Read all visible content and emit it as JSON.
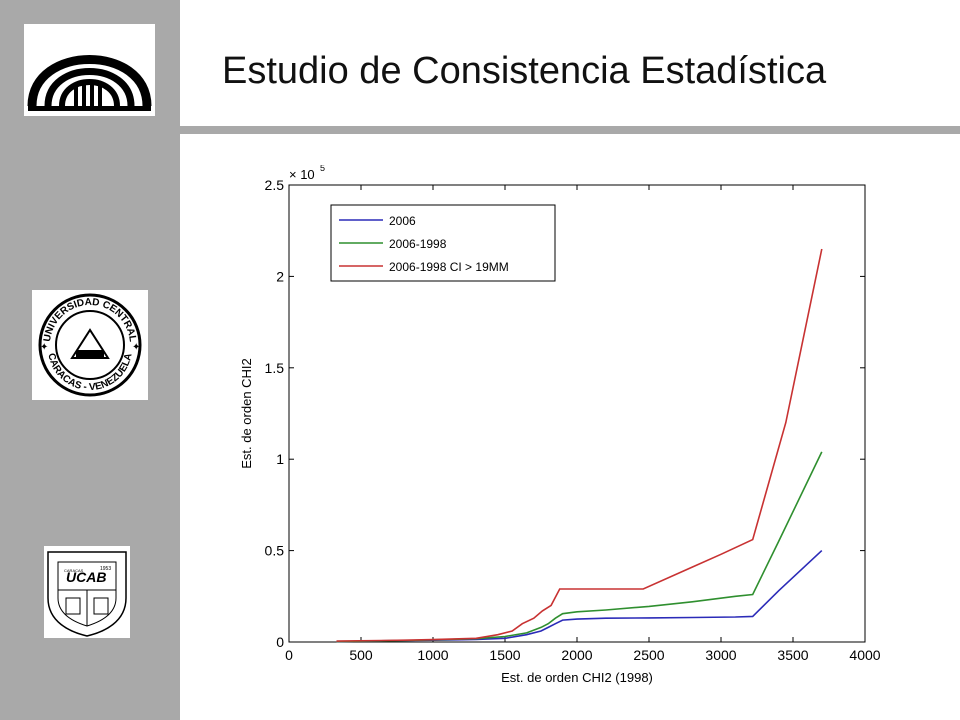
{
  "slide": {
    "title": "Estudio de Consistencia Estadística"
  },
  "logos": [
    {
      "name": "ucv-building-logo"
    },
    {
      "name": "ucv-seal",
      "top_text": "UNIVERSIDAD CENTRAL",
      "bottom_text": "CARACAS - VENEZUELA"
    },
    {
      "name": "ucab-crest",
      "text": "UCAB",
      "year": "1953",
      "city": "CARACAS"
    }
  ],
  "colors": {
    "sidebar": "#a9a9a9",
    "series_2006": "#2b2bb8",
    "series_2006_1998": "#2f8f2f",
    "series_ci": "#c83232"
  },
  "chart_data": {
    "type": "line",
    "xlabel": "Est. de orden CHI2 (1998)",
    "ylabel": "Est. de orden CHI2",
    "exponent_label": "× 10",
    "exponent_power": "5",
    "xlim": [
      0,
      4000
    ],
    "ylim": [
      0,
      2.5
    ],
    "y_multiplier": 100000,
    "xticks": [
      "0",
      "500",
      "1000",
      "1500",
      "2000",
      "2500",
      "3000",
      "3500",
      "4000"
    ],
    "yticks": [
      "0",
      "0.5",
      "1",
      "1.5",
      "2",
      "2.5"
    ],
    "legend_position": "top-left",
    "grid": false,
    "series": [
      {
        "name": "2006",
        "color": "#2b2bb8",
        "x": [
          330,
          800,
          1000,
          1300,
          1500,
          1650,
          1750,
          1800,
          1850,
          1900,
          2000,
          2200,
          2500,
          2800,
          3100,
          3220,
          3400,
          3700
        ],
        "y": [
          0.003,
          0.008,
          0.01,
          0.014,
          0.02,
          0.04,
          0.06,
          0.08,
          0.1,
          0.12,
          0.125,
          0.13,
          0.132,
          0.134,
          0.137,
          0.14,
          0.28,
          0.5
        ]
      },
      {
        "name": "2006-1998",
        "color": "#2f8f2f",
        "x": [
          330,
          800,
          1000,
          1300,
          1500,
          1650,
          1750,
          1800,
          1850,
          1900,
          2000,
          2200,
          2500,
          2800,
          3100,
          3220,
          3400,
          3700
        ],
        "y": [
          0.003,
          0.008,
          0.012,
          0.018,
          0.03,
          0.05,
          0.08,
          0.1,
          0.13,
          0.155,
          0.165,
          0.175,
          0.195,
          0.22,
          0.25,
          0.26,
          0.55,
          1.04
        ]
      },
      {
        "name": "2006-1998 CI > 19MM",
        "color": "#c83232",
        "x": [
          330,
          800,
          1000,
          1300,
          1450,
          1550,
          1620,
          1700,
          1760,
          1820,
          1880,
          2000,
          2200,
          2460,
          2800,
          3000,
          3220,
          3450,
          3700
        ],
        "y": [
          0.005,
          0.01,
          0.013,
          0.02,
          0.04,
          0.06,
          0.1,
          0.13,
          0.17,
          0.2,
          0.29,
          0.29,
          0.29,
          0.29,
          0.41,
          0.48,
          0.56,
          1.2,
          2.15
        ]
      }
    ]
  }
}
